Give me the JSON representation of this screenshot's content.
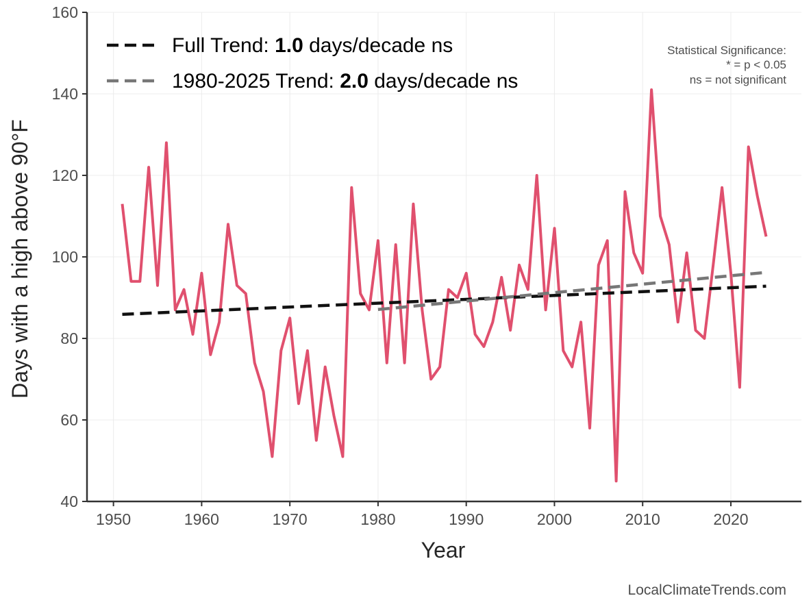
{
  "chart_data": {
    "type": "line",
    "xlabel": "Year",
    "ylabel": "Days with a high above 90°F",
    "xlim": [
      1947,
      2028
    ],
    "ylim": [
      40,
      160
    ],
    "x_ticks": [
      1950,
      1960,
      1970,
      1980,
      1990,
      2000,
      2010,
      2020
    ],
    "y_ticks": [
      40,
      60,
      80,
      100,
      120,
      140,
      160
    ],
    "grid": true,
    "legend_position": "top-left",
    "series": [
      {
        "x": [
          1951,
          1952,
          1953,
          1954,
          1955,
          1956,
          1957,
          1958,
          1959,
          1960,
          1961,
          1962,
          1963,
          1964,
          1965,
          1966,
          1967,
          1968,
          1969,
          1970,
          1971,
          1972,
          1973,
          1974,
          1975,
          1976,
          1977,
          1978,
          1979,
          1980,
          1981,
          1982,
          1983,
          1984,
          1985,
          1986,
          1987,
          1988,
          1989,
          1990,
          1991,
          1992,
          1993,
          1994,
          1995,
          1996,
          1997,
          1998,
          1999,
          2000,
          2001,
          2002,
          2003,
          2004,
          2005,
          2006,
          2007,
          2008,
          2009,
          2010,
          2011,
          2012,
          2013,
          2014,
          2015,
          2016,
          2017,
          2018,
          2019,
          2020,
          2021,
          2022,
          2023,
          2024
        ],
        "values": [
          113,
          94,
          94,
          122,
          93,
          128,
          87,
          92,
          81,
          96,
          76,
          84,
          108,
          93,
          91,
          74,
          67,
          51,
          77,
          85,
          64,
          77,
          55,
          73,
          61,
          51,
          117,
          91,
          87,
          104,
          74,
          103,
          74,
          113,
          87,
          70,
          73,
          92,
          90,
          96,
          81,
          78,
          84,
          95,
          82,
          98,
          92,
          120,
          87,
          107,
          77,
          73,
          84,
          58,
          98,
          104,
          45,
          116,
          101,
          96,
          141,
          110,
          103,
          84,
          101,
          82,
          80,
          98,
          117,
          96,
          68,
          127,
          115,
          105
        ],
        "color": "#e0506e"
      },
      {
        "name": "Full Trend",
        "x": [
          1951,
          2024
        ],
        "values": [
          85.9,
          92.8
        ],
        "color": "#111111",
        "dashed": true
      },
      {
        "name": "1980-2025 Trend",
        "x": [
          1980,
          2024
        ],
        "values": [
          87.1,
          96.2
        ],
        "color": "#777777",
        "dashed": true
      }
    ],
    "legend": [
      {
        "prefix": "Full Trend: ",
        "value": "1.0",
        "suffix": " days/decade ns",
        "color": "#111111"
      },
      {
        "prefix": "1980-2025 Trend: ",
        "value": "2.0",
        "suffix": " days/decade ns",
        "color": "#777777"
      }
    ],
    "significance_note": [
      "Statistical Significance:",
      "* = p < 0.05",
      "ns = not significant"
    ],
    "credit": "LocalClimateTrends.com"
  }
}
